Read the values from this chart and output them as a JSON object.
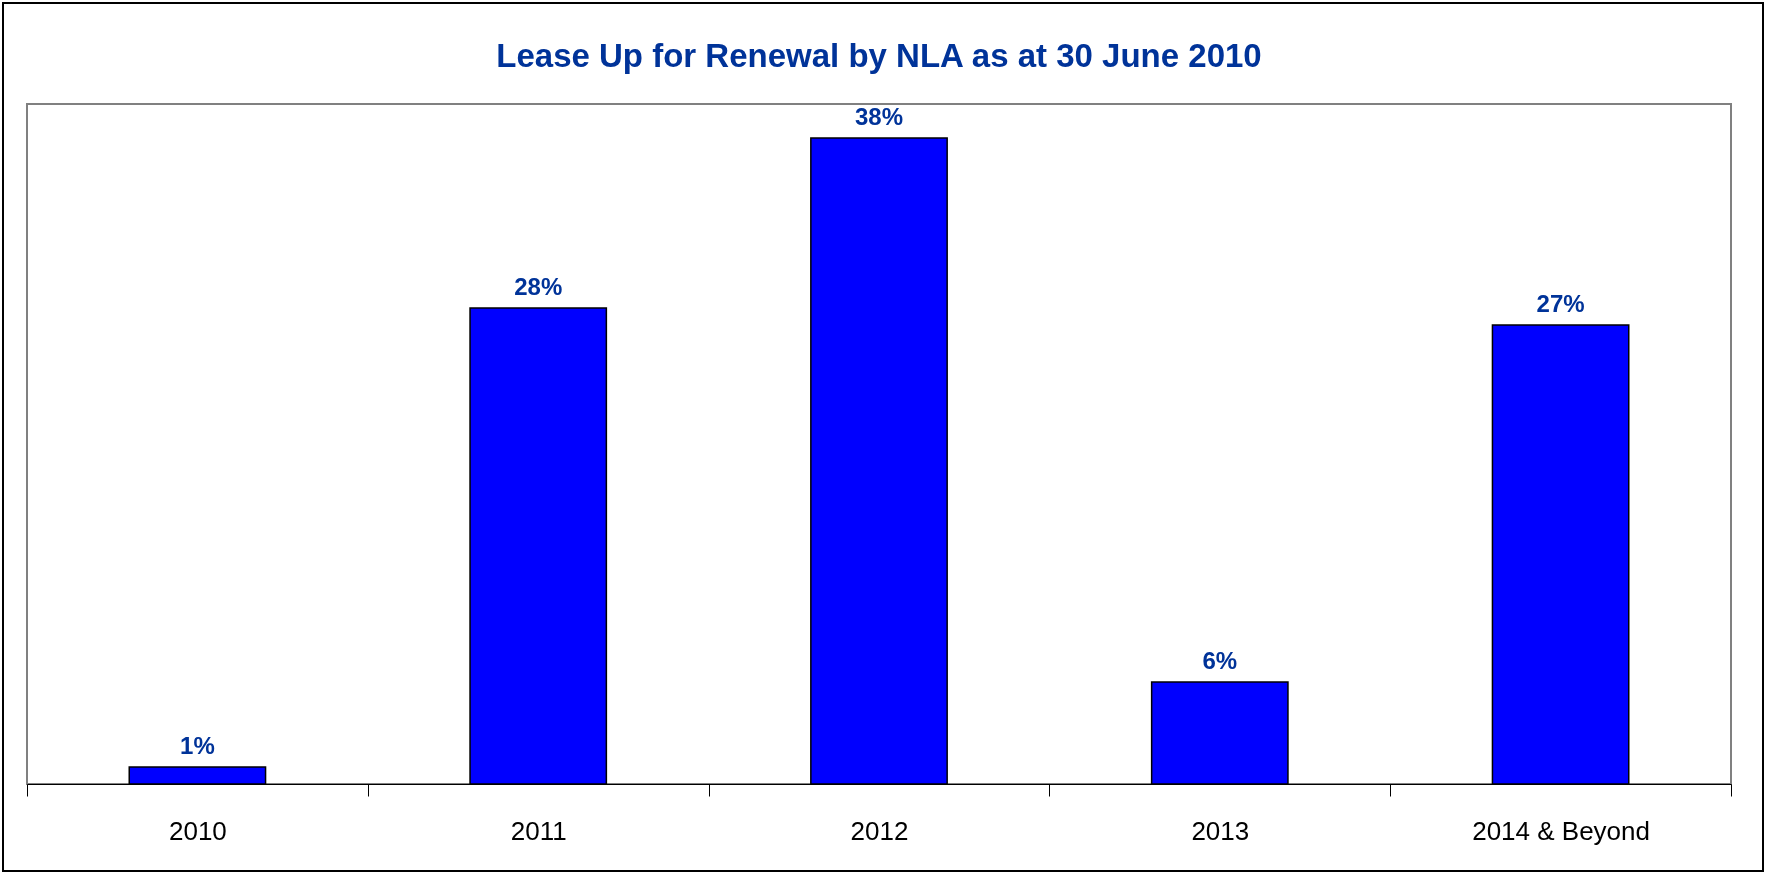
{
  "chart_data": {
    "type": "bar",
    "title": "Lease Up for Renewal by NLA as at 30 June 2010",
    "categories": [
      "2010",
      "2011",
      "2012",
      "2013",
      "2014 & Beyond"
    ],
    "values": [
      1,
      28,
      38,
      6,
      27
    ],
    "value_labels": [
      "1%",
      "28%",
      "38%",
      "6%",
      "27%"
    ],
    "color": "#0000ff"
  }
}
